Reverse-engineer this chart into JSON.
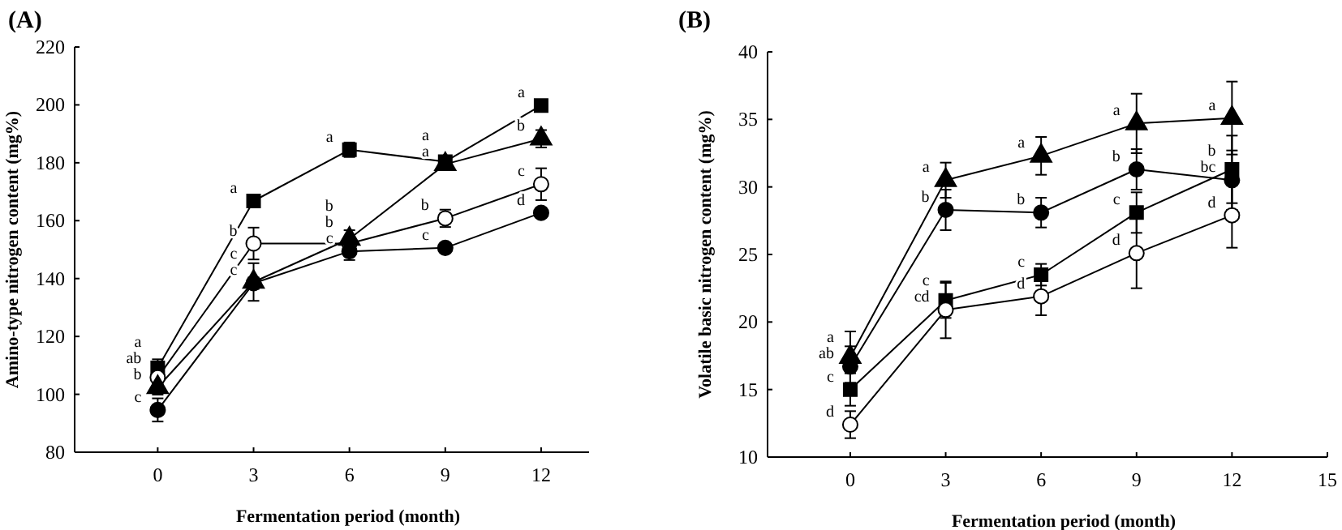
{
  "chart_data": [
    {
      "type": "line",
      "title": "(A)",
      "xlabel": "Fermentation period (month)",
      "ylabel": "Amino-type nitrogen content (mg%)",
      "x": [
        0,
        3,
        6,
        9,
        12
      ],
      "xlim": [
        -2.6,
        13.5
      ],
      "xticks": [
        0,
        3,
        6,
        9,
        12
      ],
      "ylim": [
        80,
        220
      ],
      "yticks": [
        80,
        100,
        120,
        140,
        160,
        180,
        200,
        220
      ],
      "series": [
        {
          "color": "#000000",
          "marker": "square",
          "values": [
            109.1,
            166.8,
            184.5,
            180.4,
            199.8
          ],
          "errors": [
            3,
            1,
            2.5,
            2,
            1
          ]
        },
        {
          "color": "#ffffff",
          "marker": "circle",
          "values": [
            105.8,
            152.1,
            152.1,
            160.8,
            172.6
          ],
          "errors": [
            2,
            5.5,
            null,
            3,
            5.5
          ]
        },
        {
          "color": "#000000",
          "marker": "circle",
          "values": [
            94.6,
            138.4,
            149.4,
            150.6,
            162.7
          ],
          "errors": [
            4,
            2,
            3,
            1,
            1
          ]
        },
        {
          "color": "#000000",
          "marker": "triangle",
          "values": [
            102.4,
            138.8,
            153.7,
            179.5,
            188.3
          ],
          "errors": [
            2.5,
            6.5,
            3,
            1,
            3
          ]
        }
      ],
      "annotations": [
        {
          "text": "a",
          "x": 0,
          "y": 109.1
        },
        {
          "text": "ab",
          "x": 0,
          "y": 105.8
        },
        {
          "text": "b",
          "x": 0,
          "y": 102.4
        },
        {
          "text": "c",
          "x": 0,
          "y": 94.6
        },
        {
          "text": "a",
          "x": 3,
          "y": 166.8
        },
        {
          "text": "b",
          "x": 3,
          "y": 152.1
        },
        {
          "text": "c",
          "x": 3,
          "y": 138.8
        },
        {
          "text": "c",
          "x": 3,
          "y": 138.4
        },
        {
          "text": "a",
          "x": 6,
          "y": 184.5
        },
        {
          "text": "b",
          "x": 6,
          "y": 153.7
        },
        {
          "text": "b",
          "x": 6,
          "y": 152.1
        },
        {
          "text": "c",
          "x": 6,
          "y": 149.4
        },
        {
          "text": "a",
          "x": 9,
          "y": 180.4
        },
        {
          "text": "a",
          "x": 9,
          "y": 179.5
        },
        {
          "text": "b",
          "x": 9,
          "y": 160.8
        },
        {
          "text": "c",
          "x": 9,
          "y": 150.6
        },
        {
          "text": "a",
          "x": 12,
          "y": 199.8
        },
        {
          "text": "b",
          "x": 12,
          "y": 188.3
        },
        {
          "text": "c",
          "x": 12,
          "y": 172.6
        },
        {
          "text": "d",
          "x": 12,
          "y": 162.7
        }
      ]
    },
    {
      "type": "line",
      "title": "(B)",
      "xlabel": "Fermentation period (month)",
      "ylabel": "Volatile basic nitrogen content (mg%)",
      "x": [
        0,
        3,
        6,
        9,
        12
      ],
      "xlim": [
        -2.6,
        15
      ],
      "xticks": [
        0,
        3,
        6,
        9,
        12,
        15
      ],
      "ylim": [
        10,
        40
      ],
      "yticks": [
        10,
        15,
        20,
        25,
        30,
        35,
        40
      ],
      "series": [
        {
          "color": "#000000",
          "marker": "triangle",
          "values": [
            17.4,
            30.5,
            32.3,
            34.7,
            35.1
          ],
          "errors": [
            1.9,
            1.3,
            1.4,
            2.2,
            2.7
          ]
        },
        {
          "color": "#000000",
          "marker": "circle",
          "values": [
            16.7,
            28.3,
            28.1,
            31.3,
            30.5
          ],
          "errors": [
            1.5,
            1.5,
            1.1,
            1.5,
            2.2
          ]
        },
        {
          "color": "#000000",
          "marker": "square",
          "values": [
            15.0,
            21.6,
            23.5,
            28.1,
            31.3
          ],
          "errors": [
            1.2,
            1.3,
            0.8,
            1.5,
            2.5
          ]
        },
        {
          "color": "#ffffff",
          "marker": "circle",
          "values": [
            12.4,
            20.9,
            21.9,
            25.1,
            27.9
          ],
          "errors": [
            1.0,
            2.1,
            1.4,
            2.6,
            2.4
          ]
        }
      ],
      "annotations": [
        {
          "text": "a",
          "x": 0,
          "y": 17.4
        },
        {
          "text": "ab",
          "x": 0,
          "y": 16.7
        },
        {
          "text": "c",
          "x": 0,
          "y": 15.0
        },
        {
          "text": "d",
          "x": 0,
          "y": 12.4
        },
        {
          "text": "a",
          "x": 3,
          "y": 30.5
        },
        {
          "text": "b",
          "x": 3,
          "y": 28.3
        },
        {
          "text": "c",
          "x": 3,
          "y": 21.6
        },
        {
          "text": "cd",
          "x": 3,
          "y": 20.9
        },
        {
          "text": "a",
          "x": 6,
          "y": 32.3
        },
        {
          "text": "b",
          "x": 6,
          "y": 28.1
        },
        {
          "text": "c",
          "x": 6,
          "y": 23.5
        },
        {
          "text": "d",
          "x": 6,
          "y": 21.9
        },
        {
          "text": "a",
          "x": 9,
          "y": 34.7
        },
        {
          "text": "b",
          "x": 9,
          "y": 31.3
        },
        {
          "text": "c",
          "x": 9,
          "y": 28.1
        },
        {
          "text": "d",
          "x": 9,
          "y": 25.1
        },
        {
          "text": "a",
          "x": 12,
          "y": 35.1
        },
        {
          "text": "b",
          "x": 12,
          "y": 31.3
        },
        {
          "text": "bc",
          "x": 12,
          "y": 30.5
        },
        {
          "text": "d",
          "x": 12,
          "y": 27.9
        }
      ]
    }
  ]
}
